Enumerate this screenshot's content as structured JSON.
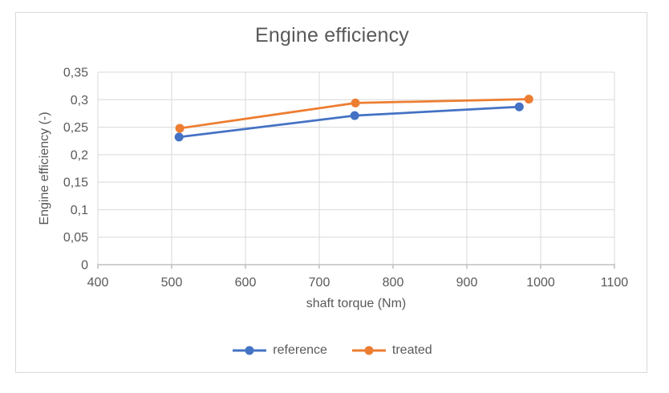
{
  "window": {
    "background": "#FFFFFF",
    "border_color": "#D9D9D9"
  },
  "chart_data": {
    "type": "line",
    "title": "Engine efficiency",
    "xlabel": "shaft torque (Nm)",
    "ylabel": "Engine efficiency (-)",
    "xlim": [
      400,
      1100
    ],
    "ylim": [
      0,
      0.35
    ],
    "xticks": [
      400,
      500,
      600,
      700,
      800,
      900,
      1000,
      1100
    ],
    "xtick_labels": [
      "400",
      "500",
      "600",
      "700",
      "800",
      "900",
      "1000",
      "1100"
    ],
    "yticks": [
      0,
      0.05,
      0.1,
      0.15,
      0.2,
      0.25,
      0.3,
      0.35
    ],
    "ytick_labels": [
      "0",
      "0,05",
      "0,1",
      "0,15",
      "0,2",
      "0,25",
      "0,3",
      "0,35"
    ],
    "grid": true,
    "legend_position": "bottom",
    "series": [
      {
        "name": "reference",
        "color": "#4472C4",
        "points": [
          [
            510,
            0.232
          ],
          [
            748,
            0.271
          ],
          [
            971,
            0.287
          ]
        ]
      },
      {
        "name": "treated",
        "color": "#ED7D31",
        "points": [
          [
            511,
            0.248
          ],
          [
            749,
            0.294
          ],
          [
            984,
            0.301
          ]
        ]
      }
    ]
  },
  "style": {
    "text_color": "#595959",
    "gridline_color": "#D9D9D9",
    "axis_line_color": "#BFBFBF"
  }
}
